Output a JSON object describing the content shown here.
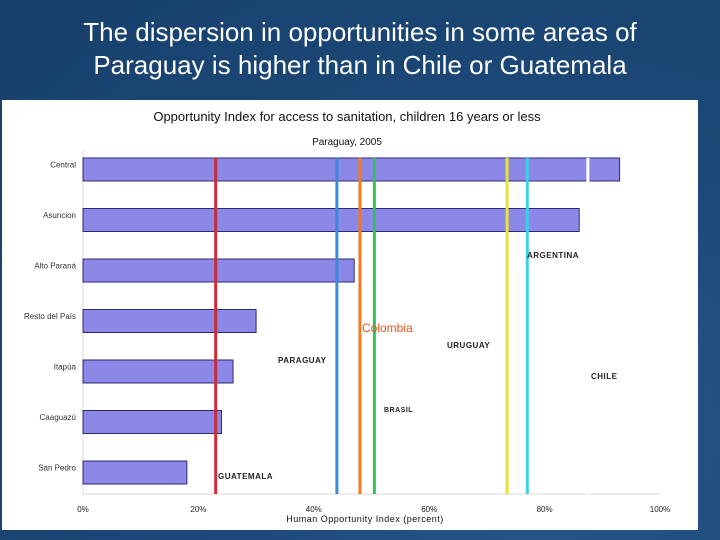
{
  "slide": {
    "title_line1": "The dispersion in opportunities in some areas of",
    "title_line2": "Paraguay is higher than in Chile or Guatemala"
  },
  "chart_data": {
    "type": "bar",
    "orientation": "horizontal",
    "title": "Opportunity Index for access to sanitation, children 16 years or less",
    "subtitle": "Paraguay, 2005",
    "xlabel": "Human Opportunity Index (percent)",
    "ylabel": "",
    "xlim": [
      0,
      100
    ],
    "x_ticks": [
      "0%",
      "20%",
      "40%",
      "60%",
      "80%",
      "100%"
    ],
    "x_tick_values": [
      0,
      20,
      40,
      60,
      80,
      100
    ],
    "categories": [
      "Central",
      "Asuncion",
      "Alto Paraná",
      "Resto del País",
      "Itapúa",
      "Caaguazú",
      "San Pedro"
    ],
    "values": [
      93,
      86,
      47,
      30,
      26,
      24,
      18
    ],
    "bar_color": "#8c88e8",
    "reference_lines": [
      {
        "name": "GUATEMALA",
        "value": 23,
        "color": "#cc2a36"
      },
      {
        "name": "PARAGUAY",
        "value": 44,
        "color": "#3a8ad8"
      },
      {
        "name": "BRASIL",
        "value": 48,
        "color": "#f07a20"
      },
      {
        "name": "Colombia",
        "value": 50.5,
        "color": "#33c25a"
      },
      {
        "name": "URUGUAY",
        "value": 73.5,
        "color": "#e6e23a"
      },
      {
        "name": "ARGENTINA",
        "value": 77,
        "color": "#3ad0e8"
      },
      {
        "name": "CHILE",
        "value": 87.5,
        "color": "#ffffff"
      }
    ],
    "legend": "none",
    "grid": false
  }
}
